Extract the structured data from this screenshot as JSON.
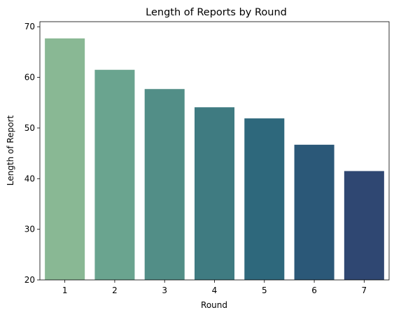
{
  "chart_data": {
    "type": "bar",
    "title": "Length of Reports by Round",
    "xlabel": "Round",
    "ylabel": "Length of Report",
    "categories": [
      "1",
      "2",
      "3",
      "4",
      "5",
      "6",
      "7"
    ],
    "values": [
      67.7,
      61.5,
      57.7,
      54.1,
      51.9,
      46.7,
      41.5
    ],
    "ylim": [
      20,
      71
    ],
    "yticks": [
      20,
      30,
      40,
      50,
      60,
      70
    ],
    "grid": false,
    "colors": [
      "#89b894",
      "#6aa48f",
      "#528e87",
      "#3f7b81",
      "#2e687c",
      "#2b5878",
      "#2f4772"
    ]
  }
}
